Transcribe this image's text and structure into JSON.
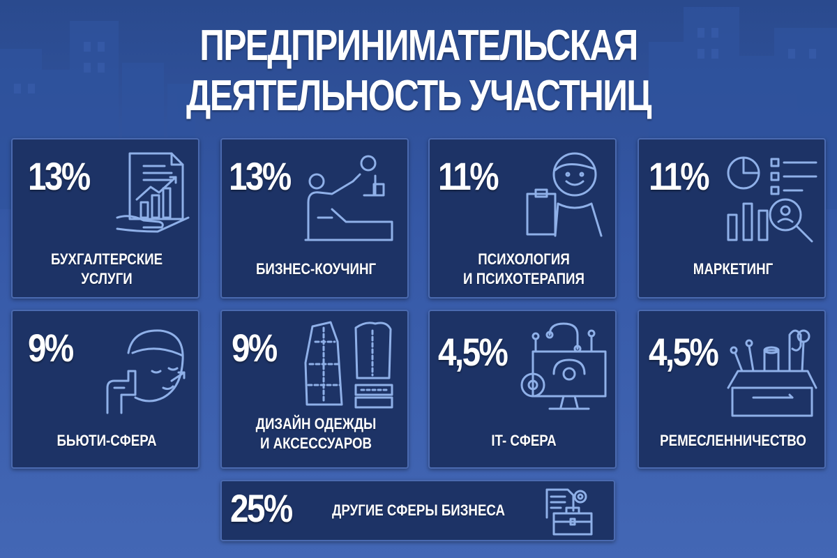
{
  "title": {
    "line1": "ПРЕДПРИНИМАТЕЛЬСКАЯ",
    "line2": "ДЕЯТЕЛЬНОСТЬ УЧАСТНИЦ"
  },
  "cards": [
    {
      "percent": "13%",
      "label_line1": "БУХГАЛТЕРСКИЕ",
      "label_line2": "УСЛУГИ",
      "icon": "financial-report-icon"
    },
    {
      "percent": "13%",
      "label_line1": "БИЗНЕС-КОУЧИНГ",
      "label_line2": "",
      "icon": "coaching-help-icon"
    },
    {
      "percent": "11%",
      "label_line1": "ПСИХОЛОГИЯ",
      "label_line2": "И ПСИХОТЕРАПИЯ",
      "icon": "psychologist-icon"
    },
    {
      "percent": "11%",
      "label_line1": "МАРКЕТИНГ",
      "label_line2": "",
      "icon": "marketing-analytics-icon"
    },
    {
      "percent": "9%",
      "label_line1": "БЬЮТИ-СФЕРА",
      "label_line2": "",
      "icon": "beauty-face-icon"
    },
    {
      "percent": "9%",
      "label_line1": "ДИЗАЙН ОДЕЖДЫ",
      "label_line2": "И АКСЕССУАРОВ",
      "icon": "sewing-pattern-icon"
    },
    {
      "percent": "4,5%",
      "label_line1": "IT- СФЕРА",
      "label_line2": "",
      "icon": "it-computer-icon"
    },
    {
      "percent": "4,5%",
      "label_line1": "РЕМЕСЛЕННИЧЕСТВО",
      "label_line2": "",
      "icon": "craft-box-icon"
    }
  ],
  "bottom_card": {
    "percent": "25%",
    "label": "ДРУГИЕ СФЕРЫ БИЗНЕСА",
    "icon": "briefcase-documents-icon"
  },
  "colors": {
    "background": "#3558a6",
    "card": "#1d3366",
    "card_border": "#4a6ab0",
    "icon_stroke": "#8fb0e8",
    "text": "#ffffff"
  }
}
